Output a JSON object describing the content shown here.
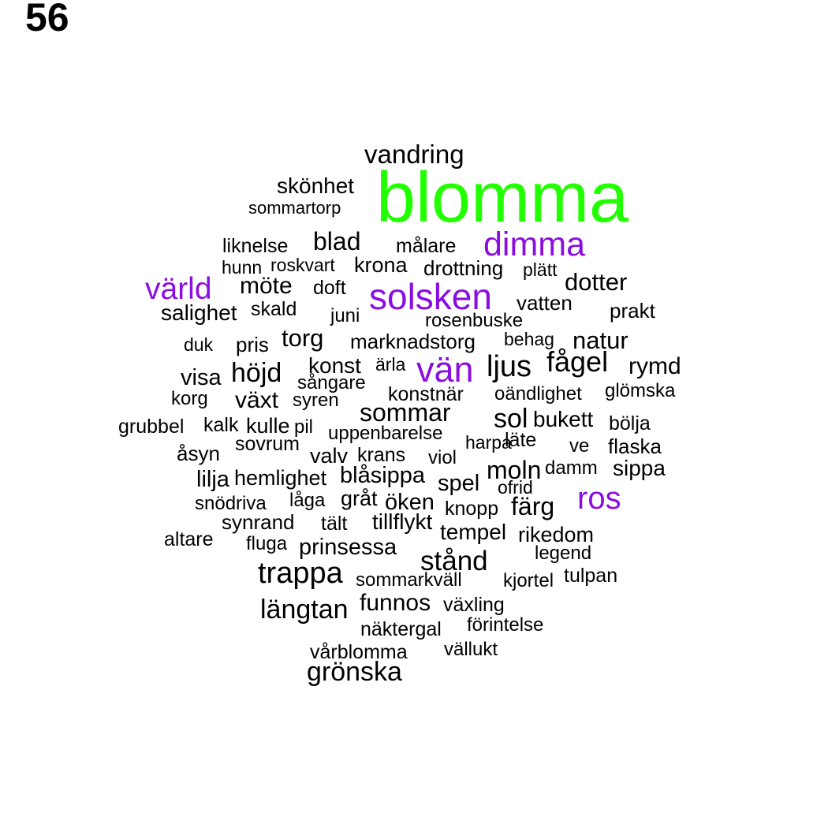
{
  "page_number": "56",
  "colors": {
    "default": "#000000",
    "green": "#22ff00",
    "purple": "#8a0ee0"
  },
  "words": [
    {
      "text": "blomma",
      "color": "green"
    },
    {
      "text": "vandring",
      "color": "default"
    },
    {
      "text": "skönhet",
      "color": "default"
    },
    {
      "text": "sommartorp",
      "color": "default"
    },
    {
      "text": "liknelse",
      "color": "default"
    },
    {
      "text": "blad",
      "color": "default"
    },
    {
      "text": "målare",
      "color": "default"
    },
    {
      "text": "dimma",
      "color": "purple"
    },
    {
      "text": "hunn",
      "color": "default"
    },
    {
      "text": "roskvart",
      "color": "default"
    },
    {
      "text": "krona",
      "color": "default"
    },
    {
      "text": "drottning",
      "color": "default"
    },
    {
      "text": "plätt",
      "color": "default"
    },
    {
      "text": "värld",
      "color": "purple"
    },
    {
      "text": "möte",
      "color": "default"
    },
    {
      "text": "doft",
      "color": "default"
    },
    {
      "text": "solsken",
      "color": "purple"
    },
    {
      "text": "dotter",
      "color": "default"
    },
    {
      "text": "vatten",
      "color": "default"
    },
    {
      "text": "salighet",
      "color": "default"
    },
    {
      "text": "skald",
      "color": "default"
    },
    {
      "text": "juni",
      "color": "default"
    },
    {
      "text": "rosenbuske",
      "color": "default"
    },
    {
      "text": "prakt",
      "color": "default"
    },
    {
      "text": "duk",
      "color": "default"
    },
    {
      "text": "pris",
      "color": "default"
    },
    {
      "text": "torg",
      "color": "default"
    },
    {
      "text": "marknadstorg",
      "color": "default"
    },
    {
      "text": "behag",
      "color": "default"
    },
    {
      "text": "natur",
      "color": "default"
    },
    {
      "text": "visa",
      "color": "default"
    },
    {
      "text": "höjd",
      "color": "default"
    },
    {
      "text": "konst",
      "color": "default"
    },
    {
      "text": "ärla",
      "color": "default"
    },
    {
      "text": "vän",
      "color": "purple"
    },
    {
      "text": "ljus",
      "color": "default"
    },
    {
      "text": "fågel",
      "color": "default"
    },
    {
      "text": "rymd",
      "color": "default"
    },
    {
      "text": "korg",
      "color": "default"
    },
    {
      "text": "växt",
      "color": "default"
    },
    {
      "text": "sångare",
      "color": "default"
    },
    {
      "text": "syren",
      "color": "default"
    },
    {
      "text": "konstnär",
      "color": "default"
    },
    {
      "text": "oändlighet",
      "color": "default"
    },
    {
      "text": "glömska",
      "color": "default"
    },
    {
      "text": "sommar",
      "color": "default"
    },
    {
      "text": "sol",
      "color": "default"
    },
    {
      "text": "bukett",
      "color": "default"
    },
    {
      "text": "grubbel",
      "color": "default"
    },
    {
      "text": "kalk",
      "color": "default"
    },
    {
      "text": "kulle",
      "color": "default"
    },
    {
      "text": "pil",
      "color": "default"
    },
    {
      "text": "uppenbarelse",
      "color": "default"
    },
    {
      "text": "harpa",
      "color": "default"
    },
    {
      "text": "läte",
      "color": "default"
    },
    {
      "text": "bölja",
      "color": "default"
    },
    {
      "text": "åsyn",
      "color": "default"
    },
    {
      "text": "sovrum",
      "color": "default"
    },
    {
      "text": "valv",
      "color": "default"
    },
    {
      "text": "krans",
      "color": "default"
    },
    {
      "text": "viol",
      "color": "default"
    },
    {
      "text": "ve",
      "color": "default"
    },
    {
      "text": "flaska",
      "color": "default"
    },
    {
      "text": "lilja",
      "color": "default"
    },
    {
      "text": "hemlighet",
      "color": "default"
    },
    {
      "text": "blåsippa",
      "color": "default"
    },
    {
      "text": "spel",
      "color": "default"
    },
    {
      "text": "moln",
      "color": "default"
    },
    {
      "text": "damm",
      "color": "default"
    },
    {
      "text": "sippa",
      "color": "default"
    },
    {
      "text": "ofrid",
      "color": "default"
    },
    {
      "text": "snödriva",
      "color": "default"
    },
    {
      "text": "låga",
      "color": "default"
    },
    {
      "text": "gråt",
      "color": "default"
    },
    {
      "text": "öken",
      "color": "default"
    },
    {
      "text": "knopp",
      "color": "default"
    },
    {
      "text": "färg",
      "color": "default"
    },
    {
      "text": "ros",
      "color": "purple"
    },
    {
      "text": "synrand",
      "color": "default"
    },
    {
      "text": "tält",
      "color": "default"
    },
    {
      "text": "tillflykt",
      "color": "default"
    },
    {
      "text": "tempel",
      "color": "default"
    },
    {
      "text": "rikedom",
      "color": "default"
    },
    {
      "text": "altare",
      "color": "default"
    },
    {
      "text": "fluga",
      "color": "default"
    },
    {
      "text": "prinsessa",
      "color": "default"
    },
    {
      "text": "legend",
      "color": "default"
    },
    {
      "text": "stånd",
      "color": "default"
    },
    {
      "text": "trappa",
      "color": "default"
    },
    {
      "text": "sommarkväll",
      "color": "default"
    },
    {
      "text": "kjortel",
      "color": "default"
    },
    {
      "text": "tulpan",
      "color": "default"
    },
    {
      "text": "längtan",
      "color": "default"
    },
    {
      "text": "funnos",
      "color": "default"
    },
    {
      "text": "växling",
      "color": "default"
    },
    {
      "text": "näktergal",
      "color": "default"
    },
    {
      "text": "förintelse",
      "color": "default"
    },
    {
      "text": "vårblomma",
      "color": "default"
    },
    {
      "text": "vällukt",
      "color": "default"
    },
    {
      "text": "grönska",
      "color": "default"
    }
  ]
}
